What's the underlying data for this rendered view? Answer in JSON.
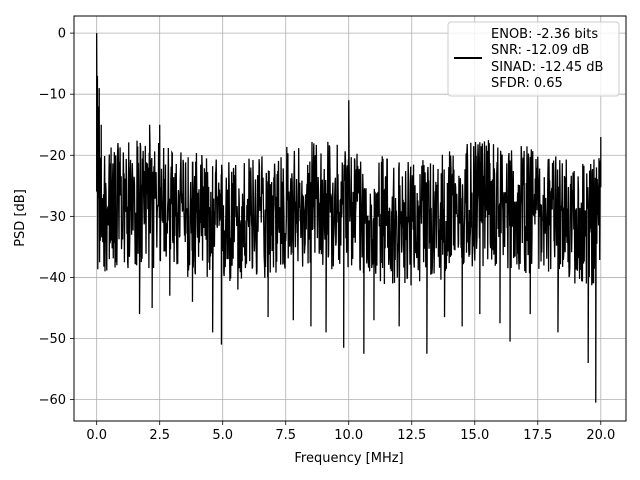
{
  "chart_data": {
    "type": "line",
    "xlabel": "Frequency [MHz]",
    "ylabel": "PSD [dB]",
    "xlim": [
      -0.9,
      21.0
    ],
    "ylim": [
      -63.5,
      2.8
    ],
    "xticks": [
      0.0,
      2.5,
      5.0,
      7.5,
      10.0,
      12.5,
      15.0,
      17.5,
      20.0
    ],
    "xtick_labels": [
      "0.0",
      "2.5",
      "5.0",
      "7.5",
      "10.0",
      "12.5",
      "15.0",
      "17.5",
      "20.0"
    ],
    "yticks": [
      0,
      -10,
      -20,
      -30,
      -40,
      -50,
      -60
    ],
    "ytick_labels": [
      "0",
      "−10",
      "−20",
      "−30",
      "−40",
      "−50",
      "−60"
    ],
    "grid": true,
    "legend_position": "top-right",
    "legend": {
      "lines": [
        "ENOB: -2.36 bits",
        "SNR: -12.09 dB",
        "SINAD: -12.45 dB",
        "SFDR: 0.65"
      ]
    },
    "series": [
      {
        "color": "#000000",
        "x_start": 0.0,
        "x_end": 20.0,
        "noise_floor_mean": -29,
        "noise_floor_range": [
          -40,
          -18
        ],
        "points": [
          {
            "x": 0.0,
            "y": 0.0
          },
          {
            "x": 0.03,
            "y": -7.0
          },
          {
            "x": 0.06,
            "y": -12.0
          },
          {
            "x": 0.1,
            "y": -9.0
          },
          {
            "x": 0.14,
            "y": -23.0
          },
          {
            "x": 0.18,
            "y": -15.0
          },
          {
            "x": 0.25,
            "y": -32.0
          },
          {
            "x": 0.33,
            "y": -39.0
          },
          {
            "x": 0.5,
            "y": -37.0
          },
          {
            "x": 0.8,
            "y": -38.0
          },
          {
            "x": 1.7,
            "y": -46.0
          },
          {
            "x": 2.1,
            "y": -15.0
          },
          {
            "x": 2.2,
            "y": -45.0
          },
          {
            "x": 2.5,
            "y": -15.0
          },
          {
            "x": 2.9,
            "y": -43.0
          },
          {
            "x": 3.8,
            "y": -44.0
          },
          {
            "x": 4.6,
            "y": -49.0
          },
          {
            "x": 4.95,
            "y": -51.0
          },
          {
            "x": 5.6,
            "y": -42.0
          },
          {
            "x": 6.8,
            "y": -46.5
          },
          {
            "x": 7.8,
            "y": -47.0
          },
          {
            "x": 8.5,
            "y": -48.0
          },
          {
            "x": 9.1,
            "y": -49.0
          },
          {
            "x": 9.8,
            "y": -51.5
          },
          {
            "x": 10.0,
            "y": -11.0
          },
          {
            "x": 10.6,
            "y": -52.5
          },
          {
            "x": 11.0,
            "y": -47.0
          },
          {
            "x": 12.0,
            "y": -48.0
          },
          {
            "x": 13.1,
            "y": -52.5
          },
          {
            "x": 13.8,
            "y": -46.5
          },
          {
            "x": 14.5,
            "y": -48.0
          },
          {
            "x": 15.2,
            "y": -46.0
          },
          {
            "x": 16.0,
            "y": -47.5
          },
          {
            "x": 16.4,
            "y": -50.5
          },
          {
            "x": 17.2,
            "y": -46.0
          },
          {
            "x": 18.3,
            "y": -49.0
          },
          {
            "x": 19.5,
            "y": -54.0
          },
          {
            "x": 19.8,
            "y": -60.5
          },
          {
            "x": 20.0,
            "y": -17.0
          }
        ]
      }
    ]
  }
}
